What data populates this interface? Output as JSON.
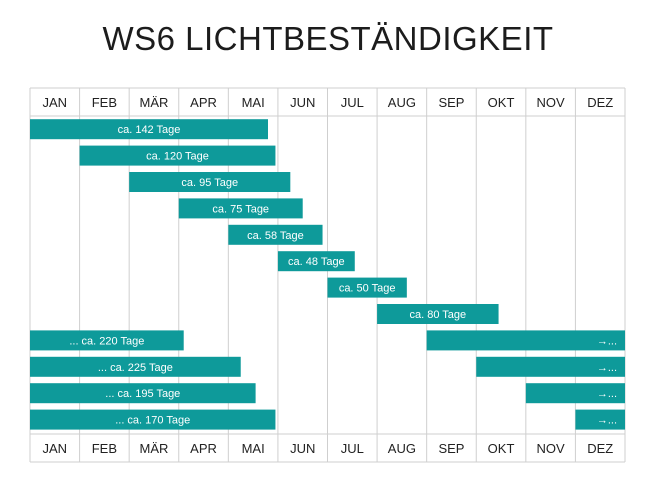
{
  "chart_data": {
    "type": "bar",
    "title": "WS6 LICHTBESTÄNDIGKEIT",
    "months": [
      "JAN",
      "FEB",
      "MÄR",
      "APR",
      "MAI",
      "JUN",
      "JUL",
      "AUG",
      "SEP",
      "OKT",
      "NOV",
      "DEZ"
    ],
    "bar_color": "#0e9a9a",
    "grid_color": "#cfcfcf",
    "bars": [
      {
        "label": "ca. 142 Tage",
        "start": 0.0,
        "end": 4.8
      },
      {
        "label": "ca. 120 Tage",
        "start": 1.0,
        "end": 4.95
      },
      {
        "label": "ca. 95 Tage",
        "start": 2.0,
        "end": 5.25
      },
      {
        "label": "ca. 75 Tage",
        "start": 3.0,
        "end": 5.5
      },
      {
        "label": "ca. 58 Tage",
        "start": 4.0,
        "end": 5.9
      },
      {
        "label": "ca. 48 Tage",
        "start": 5.0,
        "end": 6.55
      },
      {
        "label": "ca. 50 Tage",
        "start": 6.0,
        "end": 7.6
      },
      {
        "label": "ca. 80 Tage",
        "start": 7.0,
        "end": 9.45
      },
      {
        "label": "... ca. 220 Tage",
        "start": 0.0,
        "end": 3.1,
        "label2": "→...",
        "start2": 8.0,
        "end2": 12.0
      },
      {
        "label": "... ca. 225 Tage",
        "start": 0.0,
        "end": 4.25,
        "label2": "→...",
        "start2": 9.0,
        "end2": 12.0
      },
      {
        "label": "... ca. 195 Tage",
        "start": 0.0,
        "end": 4.55,
        "label2": "→...",
        "start2": 10.0,
        "end2": 12.0
      },
      {
        "label": "... ca. 170 Tage",
        "start": 0.0,
        "end": 4.95,
        "label2": "→...",
        "start2": 11.0,
        "end2": 12.0
      }
    ]
  }
}
